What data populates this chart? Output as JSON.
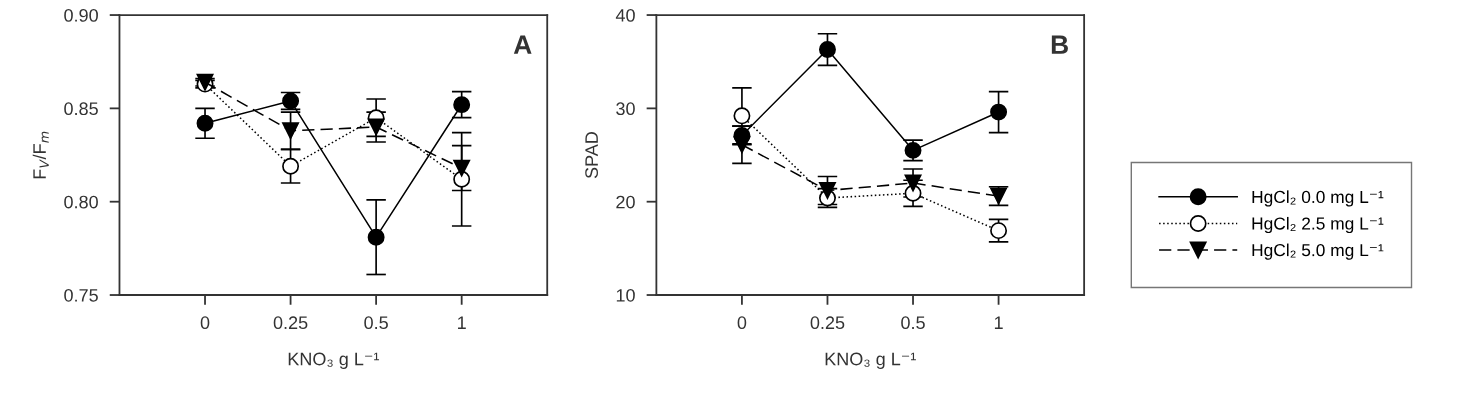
{
  "chart_data": [
    {
      "type": "line",
      "ylabel": "F$_{V}$/F$_{m}$",
      "xlabel": "KNO₃ g L⁻¹",
      "categories": [
        "0",
        "0.25",
        "0.5",
        "1"
      ],
      "ylim": [
        0.75,
        0.9
      ],
      "yticks": [
        0.75,
        {
          "value": 0.8,
          "label": "0.80"
        },
        0.85,
        {
          "value": 0.9,
          "label": "0.90"
        }
      ],
      "grid": false,
      "annotations": [
        "A"
      ],
      "series": [
        {
          "color": "#000000",
          "marker": "circle",
          "line_style": "solid",
          "values": [
            0.842,
            0.854,
            0.781,
            0.852
          ],
          "errors": [
            0.008,
            0.0045,
            0.02,
            0.007
          ]
        },
        {
          "color": "#000000",
          "marker": "circle",
          "line_style": "dotted",
          "values": [
            0.863,
            0.819,
            0.845,
            0.812
          ],
          "errors": [
            0.002,
            0.009,
            0.01,
            0.025
          ]
        },
        {
          "color": "#000000",
          "marker": "triangle",
          "line_style": "dashed",
          "values": [
            0.864,
            0.838,
            0.84,
            0.818
          ],
          "errors": [
            0.002,
            0.01,
            0.008,
            0.012
          ]
        }
      ]
    },
    {
      "type": "line",
      "ylabel": "SPAD",
      "xlabel": "KNO₃ g L⁻¹",
      "categories": [
        "0",
        "0.25",
        "0.5",
        "1"
      ],
      "ylim": [
        10,
        40
      ],
      "yticks": [
        10,
        20,
        30,
        40
      ],
      "grid": false,
      "legend": "right",
      "annotations": [
        "B"
      ],
      "series": [
        {
          "name": "HgCl₂ 0.0 mg L⁻¹",
          "color": "#000000",
          "marker": "circle",
          "line_style": "solid",
          "values": [
            27.1,
            36.3,
            25.5,
            29.6
          ],
          "errors": [
            1.0,
            1.7,
            1.1,
            2.2
          ]
        },
        {
          "name": "HgCl₂ 2.5 mg L⁻¹",
          "color": "#000000",
          "marker": "circle",
          "line_style": "dotted",
          "values": [
            29.2,
            20.4,
            20.9,
            16.9
          ],
          "errors": [
            3.0,
            1.0,
            1.4,
            1.2
          ]
        },
        {
          "name": "HgCl₂ 5.0 mg L⁻¹",
          "color": "#000000",
          "marker": "triangle",
          "line_style": "dashed",
          "values": [
            26.1,
            21.2,
            22.0,
            20.6
          ],
          "errors": [
            2.0,
            1.5,
            1.5,
            1.0
          ]
        }
      ]
    }
  ]
}
